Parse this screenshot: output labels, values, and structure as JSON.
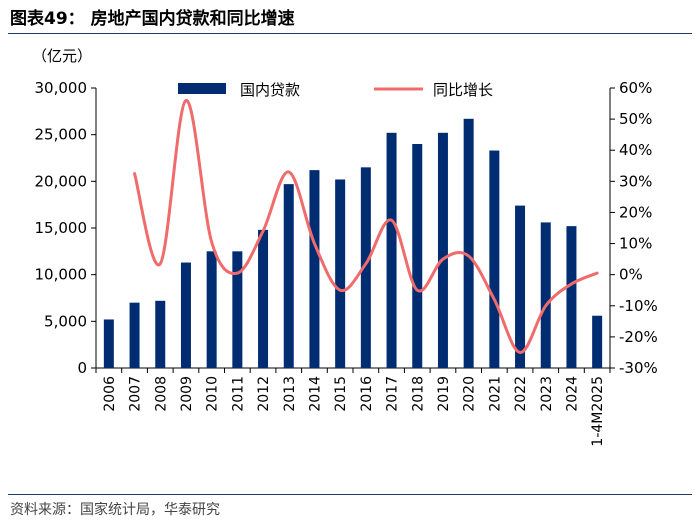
{
  "figure": {
    "title": "图表49：  房地产国内贷款和同比增速",
    "unit": "（亿元）",
    "source": "资料来源：国家统计局，华泰研究"
  },
  "colors": {
    "bar": "#002d72",
    "line": "#f06b6b",
    "rule": "#1f3864"
  },
  "chart_data": {
    "type": "bar+line",
    "title": "房地产国内贷款和同比增速",
    "categories": [
      "2006",
      "2007",
      "2008",
      "2009",
      "2010",
      "2011",
      "2012",
      "2013",
      "2014",
      "2015",
      "2016",
      "2017",
      "2018",
      "2019",
      "2020",
      "2021",
      "2022",
      "2023",
      "2024",
      "1-4M2025"
    ],
    "series": [
      {
        "name": "国内贷款",
        "type": "bar",
        "axis": "left",
        "values": [
          5200,
          7000,
          7200,
          11300,
          12500,
          12500,
          14800,
          19700,
          21200,
          20200,
          21500,
          25200,
          24000,
          25200,
          26700,
          23300,
          17400,
          15600,
          15200,
          5600
        ]
      },
      {
        "name": "同比增长",
        "type": "line",
        "axis": "right",
        "values": [
          null,
          32.5,
          3.5,
          56,
          10.5,
          0.5,
          14,
          33,
          10,
          -5,
          3.5,
          17.5,
          -5,
          5,
          6,
          -8,
          -25,
          -10,
          -3,
          0.5
        ]
      }
    ],
    "left_axis": {
      "min": 0,
      "max": 30000,
      "ticks": [
        "0",
        "5,000",
        "10,000",
        "15,000",
        "20,000",
        "25,000",
        "30,000"
      ]
    },
    "right_axis": {
      "min": -30,
      "max": 60,
      "ticks": [
        "-30%",
        "-20%",
        "-10%",
        "0%",
        "10%",
        "20%",
        "30%",
        "40%",
        "50%",
        "60%"
      ]
    },
    "legend": {
      "position": "top",
      "items": [
        "国内贷款",
        "同比增长"
      ]
    }
  }
}
